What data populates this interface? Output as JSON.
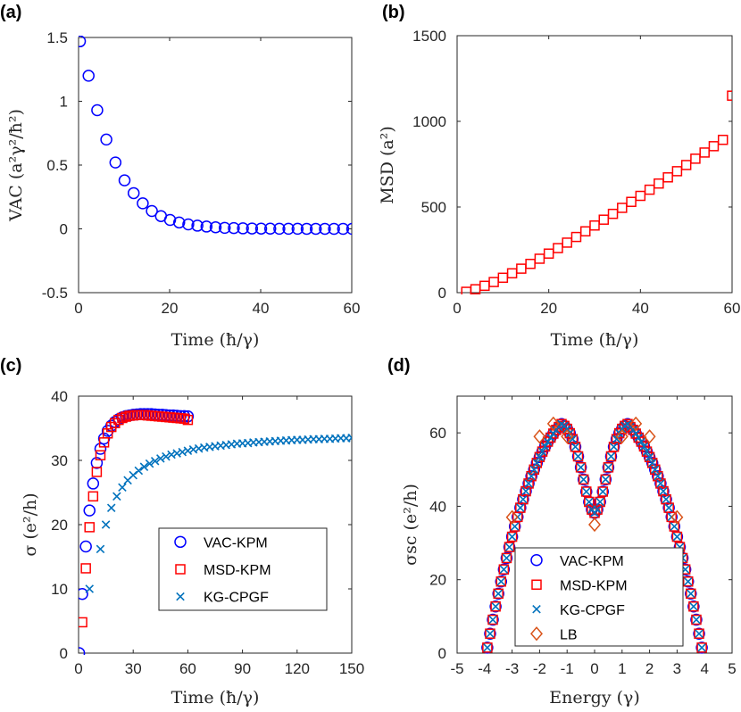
{
  "colors": {
    "vac": "#0000ff",
    "msd": "#ff0000",
    "kg": "#0072bd",
    "lb": "#d95319",
    "axis": "#262626"
  },
  "chart_data": [
    {
      "id": "a",
      "panel_label": "(a)",
      "type": "scatter",
      "marker": "circle",
      "color_key": "vac",
      "xlabel": "Time (ħ/γ)",
      "ylabel": "VAC (a²γ²/ħ²)",
      "xlim": [
        0,
        60
      ],
      "ylim": [
        -0.5,
        1.5
      ],
      "xticks": [
        0,
        20,
        40,
        60
      ],
      "xtick_labels": [
        "0",
        "20",
        "40",
        "60"
      ],
      "yticks": [
        -0.5,
        0,
        0.5,
        1,
        1.5
      ],
      "ytick_labels": [
        "-0.5",
        "0",
        "0.5",
        "1",
        "1.5"
      ],
      "x": [
        0.3,
        2.2,
        4.1,
        6.1,
        8.1,
        10.1,
        12.1,
        14.1,
        16.1,
        18.1,
        20.1,
        22.1,
        24.1,
        26.1,
        28.1,
        30.1,
        32.1,
        34.1,
        36.1,
        38.1,
        40.1,
        42.1,
        44.1,
        46.1,
        48.1,
        50.1,
        52.1,
        54.1,
        56.1,
        58.1,
        60.1
      ],
      "y": [
        1.47,
        1.2,
        0.93,
        0.7,
        0.52,
        0.38,
        0.28,
        0.2,
        0.14,
        0.1,
        0.07,
        0.05,
        0.035,
        0.025,
        0.018,
        0.012,
        0.008,
        0.006,
        0.004,
        0.003,
        0.002,
        0.0015,
        0.001,
        0.0008,
        0.0006,
        0.0004,
        0.0003,
        0.0002,
        0.0001,
        0.0001,
        0
      ]
    },
    {
      "id": "b",
      "panel_label": "(b)",
      "type": "scatter",
      "marker": "square",
      "color_key": "msd",
      "xlabel": "Time (ħ/γ)",
      "ylabel": "MSD (a²)",
      "xlim": [
        0,
        60
      ],
      "ylim": [
        0,
        1500
      ],
      "xticks": [
        0,
        20,
        40,
        60
      ],
      "xtick_labels": [
        "0",
        "20",
        "40",
        "60"
      ],
      "yticks": [
        0,
        500,
        1000,
        1500
      ],
      "ytick_labels": [
        "0",
        "500",
        "1000",
        "1500"
      ],
      "x": [
        2,
        4,
        6,
        8,
        10,
        12,
        14,
        16,
        18,
        20,
        22,
        24,
        26,
        28,
        30,
        32,
        34,
        36,
        38,
        40,
        42,
        44,
        46,
        48,
        50,
        52,
        54,
        56,
        58,
        60
      ],
      "y": [
        5,
        20,
        40,
        62,
        87,
        113,
        140,
        168,
        198,
        228,
        260,
        292,
        325,
        358,
        392,
        426,
        460,
        495,
        530,
        565,
        601,
        637,
        673,
        709,
        745,
        782,
        818,
        855,
        892,
        1150
      ]
    },
    {
      "id": "c",
      "panel_label": "(c)",
      "type": "scatter",
      "xlabel": "Time (ħ/γ)",
      "ylabel": "σ (e²/h)",
      "xlim": [
        0,
        150
      ],
      "ylim": [
        0,
        40
      ],
      "xticks": [
        0,
        30,
        60,
        90,
        120,
        150
      ],
      "xtick_labels": [
        "0",
        "30",
        "60",
        "90",
        "120",
        "150"
      ],
      "yticks": [
        0,
        10,
        20,
        30,
        40
      ],
      "ytick_labels": [
        "0",
        "10",
        "20",
        "30",
        "40"
      ],
      "legend": {
        "position": "center-right",
        "entries": [
          "VAC-KPM",
          "MSD-KPM",
          "KG-CPGF"
        ]
      },
      "series": [
        {
          "name": "VAC-KPM",
          "marker": "circle",
          "color_key": "vac",
          "x": [
            0.3,
            2,
            4,
            6,
            8,
            10,
            12,
            14,
            16,
            18,
            20,
            22,
            24,
            26,
            28,
            30,
            32,
            34,
            36,
            38,
            40,
            42,
            44,
            46,
            48,
            50,
            52,
            54,
            56,
            58,
            60
          ],
          "y": [
            0,
            9.2,
            16.6,
            22.2,
            26.4,
            29.6,
            31.8,
            33.4,
            34.6,
            35.4,
            36,
            36.4,
            36.7,
            36.9,
            37,
            37.1,
            37.15,
            37.2,
            37.2,
            37.2,
            37.2,
            37.15,
            37.1,
            37.1,
            37.05,
            37,
            37,
            36.95,
            36.9,
            36.9,
            36.85
          ]
        },
        {
          "name": "MSD-KPM",
          "marker": "square",
          "color_key": "msd",
          "x": [
            2,
            4,
            6,
            8,
            10,
            12,
            14,
            16,
            18,
            20,
            22,
            24,
            26,
            28,
            30,
            32,
            34,
            36,
            38,
            40,
            42,
            44,
            46,
            48,
            50,
            52,
            54,
            56,
            58,
            60
          ],
          "y": [
            4.8,
            13.2,
            19.6,
            24.4,
            28.2,
            30.8,
            32.8,
            34.2,
            35.2,
            35.8,
            36.3,
            36.6,
            36.8,
            36.95,
            37,
            37.05,
            37.05,
            37.05,
            37,
            36.95,
            36.9,
            36.85,
            36.8,
            36.75,
            36.7,
            36.65,
            36.6,
            36.55,
            36.5,
            36.3
          ]
        },
        {
          "name": "KG-CPGF",
          "marker": "cross",
          "color_key": "kg",
          "x": [
            6,
            12,
            15,
            18,
            21,
            24,
            27,
            30,
            33,
            36,
            39,
            42,
            45,
            48,
            51,
            54,
            57,
            60,
            63,
            66,
            69,
            72,
            75,
            78,
            81,
            84,
            87,
            90,
            93,
            96,
            99,
            102,
            105,
            108,
            111,
            114,
            117,
            120,
            123,
            126,
            129,
            132,
            135,
            138,
            141,
            144,
            147,
            150
          ],
          "y": [
            10,
            16.2,
            20,
            22.6,
            24.4,
            25.8,
            26.9,
            27.7,
            28.4,
            29,
            29.5,
            29.9,
            30.3,
            30.6,
            30.9,
            31.1,
            31.3,
            31.5,
            31.7,
            31.85,
            32,
            32.1,
            32.2,
            32.3,
            32.4,
            32.5,
            32.6,
            32.65,
            32.7,
            32.8,
            32.85,
            32.9,
            32.95,
            33,
            33.05,
            33.1,
            33.15,
            33.2,
            33.2,
            33.25,
            33.3,
            33.3,
            33.35,
            33.35,
            33.4,
            33.45,
            33.45,
            33.5
          ]
        }
      ]
    },
    {
      "id": "d",
      "panel_label": "(d)",
      "type": "scatter",
      "xlabel": "Energy (γ)",
      "ylabel": "σsc (e²/h)",
      "xlim": [
        -5,
        5
      ],
      "ylim": [
        0,
        70
      ],
      "xticks": [
        -5,
        -4,
        -3,
        -2,
        -1,
        0,
        1,
        2,
        3,
        4,
        5
      ],
      "xtick_labels": [
        "-5",
        "-4",
        "-3",
        "-2",
        "-1",
        "0",
        "1",
        "2",
        "3",
        "4",
        "5"
      ],
      "yticks": [
        0,
        20,
        40,
        60
      ],
      "ytick_labels": [
        "0",
        "20",
        "40",
        "60"
      ],
      "legend": {
        "position": "bottom-center",
        "entries": [
          "VAC-KPM",
          "MSD-KPM",
          "KG-CPGF",
          "LB"
        ]
      },
      "series": [
        {
          "name": "VAC-KPM",
          "marker": "circle",
          "color_key": "vac",
          "x": [
            -3.9,
            -3.8,
            -3.7,
            -3.6,
            -3.5,
            -3.4,
            -3.3,
            -3.2,
            -3.1,
            -3,
            -2.9,
            -2.8,
            -2.7,
            -2.6,
            -2.5,
            -2.4,
            -2.3,
            -2.2,
            -2.1,
            -2,
            -1.9,
            -1.8,
            -1.7,
            -1.6,
            -1.5,
            -1.4,
            -1.3,
            -1.2,
            -1.1,
            -1,
            -0.9,
            -0.8,
            -0.7,
            -0.6,
            -0.5,
            -0.4,
            -0.3,
            -0.2,
            -0.1,
            0,
            0.1,
            0.2,
            0.3,
            0.4,
            0.5,
            0.6,
            0.7,
            0.8,
            0.9,
            1,
            1.1,
            1.2,
            1.3,
            1.4,
            1.5,
            1.6,
            1.7,
            1.8,
            1.9,
            2,
            2.1,
            2.2,
            2.3,
            2.4,
            2.5,
            2.6,
            2.7,
            2.8,
            2.9,
            3,
            3.1,
            3.2,
            3.3,
            3.4,
            3.5,
            3.6,
            3.7,
            3.8,
            3.9
          ],
          "y": [
            1.5,
            5.3,
            9.1,
            12.7,
            16.2,
            19.5,
            22.8,
            25.9,
            28.9,
            31.7,
            34.5,
            37.1,
            39.6,
            41.9,
            44.1,
            46.2,
            48.2,
            50,
            51.8,
            53.4,
            54.9,
            56.3,
            57.6,
            58.7,
            59.8,
            60.8,
            61.6,
            62.4,
            61.9,
            61.1,
            59.9,
            58.3,
            56.2,
            53.6,
            50.6,
            47.3,
            44,
            41.2,
            39.1,
            38.2,
            39.1,
            41.2,
            44,
            47.3,
            50.6,
            53.6,
            56.2,
            58.3,
            59.9,
            61.1,
            61.9,
            62.4,
            61.6,
            60.8,
            59.8,
            58.7,
            57.6,
            56.3,
            54.9,
            53.4,
            51.8,
            50,
            48.2,
            46.2,
            44.1,
            41.9,
            39.6,
            37.1,
            34.5,
            31.7,
            28.9,
            25.9,
            22.8,
            19.5,
            16.2,
            12.7,
            9.1,
            5.3,
            1.5
          ]
        },
        {
          "name": "MSD-KPM",
          "marker": "square",
          "color_key": "msd",
          "x": [
            -3.9,
            -3.8,
            -3.7,
            -3.6,
            -3.5,
            -3.4,
            -3.3,
            -3.2,
            -3.1,
            -3,
            -2.9,
            -2.8,
            -2.7,
            -2.6,
            -2.5,
            -2.4,
            -2.3,
            -2.2,
            -2.1,
            -2,
            -1.9,
            -1.8,
            -1.7,
            -1.6,
            -1.5,
            -1.4,
            -1.3,
            -1.2,
            -1.1,
            -1,
            -0.9,
            -0.8,
            -0.7,
            -0.6,
            -0.5,
            -0.4,
            -0.3,
            -0.2,
            -0.1,
            0,
            0.1,
            0.2,
            0.3,
            0.4,
            0.5,
            0.6,
            0.7,
            0.8,
            0.9,
            1,
            1.1,
            1.2,
            1.3,
            1.4,
            1.5,
            1.6,
            1.7,
            1.8,
            1.9,
            2,
            2.1,
            2.2,
            2.3,
            2.4,
            2.5,
            2.6,
            2.7,
            2.8,
            2.9,
            3,
            3.1,
            3.2,
            3.3,
            3.4,
            3.5,
            3.6,
            3.7,
            3.8,
            3.9
          ],
          "y": [
            1.5,
            5.3,
            9.1,
            12.7,
            16.2,
            19.5,
            22.8,
            25.9,
            28.9,
            31.7,
            34.5,
            37.1,
            39.6,
            41.9,
            44.1,
            46.2,
            48.2,
            50,
            51.8,
            53.4,
            54.9,
            56.3,
            57.6,
            58.7,
            59.8,
            60.8,
            61.6,
            62.4,
            61.9,
            61.1,
            59.9,
            58.3,
            56.2,
            53.6,
            50.6,
            47.3,
            44,
            41.2,
            39.1,
            38.2,
            39.1,
            41.2,
            44,
            47.3,
            50.6,
            53.6,
            56.2,
            58.3,
            59.9,
            61.1,
            61.9,
            62.4,
            61.6,
            60.8,
            59.8,
            58.7,
            57.6,
            56.3,
            54.9,
            53.4,
            51.8,
            50,
            48.2,
            46.2,
            44.1,
            41.9,
            39.6,
            37.1,
            34.5,
            31.7,
            28.9,
            25.9,
            22.8,
            19.5,
            16.2,
            12.7,
            9.1,
            5.3,
            1.5
          ]
        },
        {
          "name": "KG-CPGF",
          "marker": "cross",
          "color_key": "kg",
          "x": [
            -3.9,
            -3.8,
            -3.7,
            -3.6,
            -3.5,
            -3.4,
            -3.3,
            -3.2,
            -3.1,
            -3,
            -2.9,
            -2.8,
            -2.7,
            -2.6,
            -2.5,
            -2.4,
            -2.3,
            -2.2,
            -2.1,
            -2,
            -1.9,
            -1.8,
            -1.7,
            -1.6,
            -1.5,
            -1.4,
            -1.3,
            -1.2,
            -1.1,
            -1,
            -0.9,
            -0.8,
            -0.7,
            -0.6,
            -0.5,
            -0.4,
            -0.3,
            -0.2,
            -0.1,
            0,
            0.1,
            0.2,
            0.3,
            0.4,
            0.5,
            0.6,
            0.7,
            0.8,
            0.9,
            1,
            1.1,
            1.2,
            1.3,
            1.4,
            1.5,
            1.6,
            1.7,
            1.8,
            1.9,
            2,
            2.1,
            2.2,
            2.3,
            2.4,
            2.5,
            2.6,
            2.7,
            2.8,
            2.9,
            3,
            3.1,
            3.2,
            3.3,
            3.4,
            3.5,
            3.6,
            3.7,
            3.8,
            3.9
          ],
          "y": [
            1.5,
            5.3,
            9.1,
            12.7,
            16.2,
            19.5,
            22.8,
            25.9,
            28.9,
            31.7,
            34.5,
            37.1,
            39.6,
            41.9,
            44.1,
            46.2,
            48.2,
            50,
            51.8,
            53.4,
            54.9,
            56.3,
            57.6,
            58.7,
            59.8,
            60.8,
            61.6,
            62.4,
            61.9,
            61.1,
            59.9,
            58.3,
            56.2,
            53.6,
            50.6,
            47.3,
            44,
            41.2,
            39.1,
            38.2,
            39.1,
            41.2,
            44,
            47.3,
            50.6,
            53.6,
            56.2,
            58.3,
            59.9,
            61.1,
            61.9,
            62.4,
            61.6,
            60.8,
            59.8,
            58.7,
            57.6,
            56.3,
            54.9,
            53.4,
            51.8,
            50,
            48.2,
            46.2,
            44.1,
            41.9,
            39.6,
            37.1,
            34.5,
            31.7,
            28.9,
            25.9,
            22.8,
            19.5,
            16.2,
            12.7,
            9.1,
            5.3,
            1.5
          ]
        },
        {
          "name": "LB",
          "marker": "diamond",
          "color_key": "lb",
          "x": [
            -3,
            -2,
            -1.5,
            -1,
            0,
            1,
            1.5,
            2,
            3
          ],
          "y": [
            37,
            59,
            62.5,
            59,
            35,
            59,
            62.5,
            59,
            37
          ]
        }
      ]
    }
  ]
}
